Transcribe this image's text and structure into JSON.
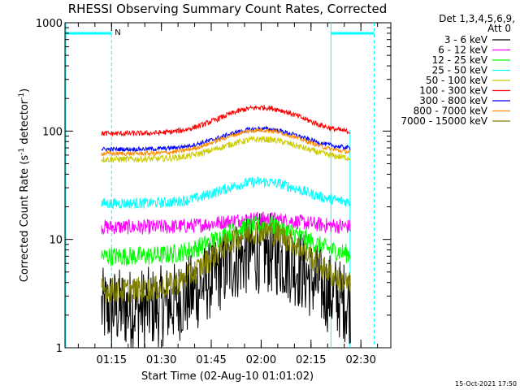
{
  "chart_data": {
    "type": "line",
    "title": "RHESSI Observing Summary Count Rates, Corrected",
    "xlabel": "Start Time (02-Aug-10 01:01:02)",
    "ylabel_main": "Corrected Count Rate (s",
    "ylabel_sup1": "-1",
    "ylabel_mid": " detector",
    "ylabel_sup2": "-1",
    "ylabel_end": ")",
    "yscale": "log",
    "ylim": [
      1,
      1000
    ],
    "xlim": [
      "01:01",
      "02:39"
    ],
    "x_ticks": [
      "01:15",
      "01:30",
      "01:45",
      "02:00",
      "02:15",
      "02:30"
    ],
    "y_ticks": [
      "1",
      "10",
      "100",
      "1000"
    ],
    "legend_header_1": "Det 1,3,4,5,6,9,",
    "legend_header_2": "Att 0",
    "data_start": "01:12",
    "data_end": "02:27",
    "night_marker_label": "N",
    "series": [
      {
        "name": "3 - 6 keV",
        "color": "#000000",
        "baseline": 2.3,
        "peak": 7.5,
        "noise": 0.38
      },
      {
        "name": "6 - 12 keV",
        "color": "#ff00ff",
        "baseline": 13.0,
        "peak": 15.5,
        "noise": 0.07
      },
      {
        "name": "12 - 25 keV",
        "color": "#00ff00",
        "baseline": 7.0,
        "peak": 13.5,
        "noise": 0.09
      },
      {
        "name": "25 - 50 keV",
        "color": "#00ffff",
        "baseline": 21.5,
        "peak": 34.0,
        "noise": 0.05
      },
      {
        "name": "50 - 100 keV",
        "color": "#cccc00",
        "baseline": 55.0,
        "peak": 84.0,
        "noise": 0.03
      },
      {
        "name": "100 - 300 keV",
        "color": "#ff0000",
        "baseline": 95.0,
        "peak": 165.0,
        "noise": 0.025
      },
      {
        "name": "300 - 800 keV",
        "color": "#0000ff",
        "baseline": 68.0,
        "peak": 105.0,
        "noise": 0.02
      },
      {
        "name": "800 - 7000 keV",
        "color": "#ff8c00",
        "baseline": 62.0,
        "peak": 102.0,
        "noise": 0.02
      },
      {
        "name": "7000 - 15000 keV",
        "color": "#808000",
        "baseline": 3.4,
        "peak": 12.0,
        "noise": 0.12
      }
    ]
  },
  "footer_timestamp": "15-Oct-2021 17:50"
}
